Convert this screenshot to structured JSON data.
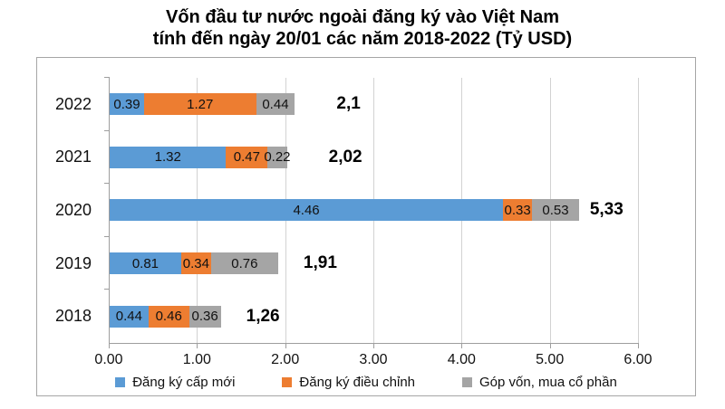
{
  "chart_data": {
    "type": "bar",
    "orientation": "horizontal-stacked",
    "title_lines": [
      "Vốn đầu tư nước ngoài đăng ký vào Việt Nam",
      "tính đến ngày 20/01 các năm 2018-2022 (Tỷ USD)"
    ],
    "categories": [
      "2022",
      "2021",
      "2020",
      "2019",
      "2018"
    ],
    "series": [
      {
        "name": "Đăng ký cấp mới",
        "color": "#5B9BD5",
        "values": [
          0.39,
          1.32,
          4.46,
          0.81,
          0.44
        ]
      },
      {
        "name": "Đăng ký điều chỉnh",
        "color": "#ED7D31",
        "values": [
          1.27,
          0.47,
          0.33,
          0.34,
          0.46
        ]
      },
      {
        "name": "Góp vốn, mua cổ phần",
        "color": "#A5A5A5",
        "values": [
          0.44,
          0.22,
          0.53,
          0.76,
          0.36
        ]
      }
    ],
    "segment_labels": [
      [
        "0.39",
        "1.27",
        "0.44"
      ],
      [
        "1.32",
        "0.47",
        "0.22"
      ],
      [
        "4.46",
        "0.33",
        "0.53"
      ],
      [
        "0.81",
        "0.34",
        "0.76"
      ],
      [
        "0.44",
        "0.46",
        "0.36"
      ]
    ],
    "totals": [
      "2,1",
      "2,02",
      "5,33",
      "1,91",
      "1,26"
    ],
    "xlim": [
      0,
      6
    ],
    "x_ticks": [
      "0.00",
      "1.00",
      "2.00",
      "3.00",
      "4.00",
      "5.00",
      "6.00"
    ],
    "grid": true,
    "legend_position": "bottom"
  }
}
